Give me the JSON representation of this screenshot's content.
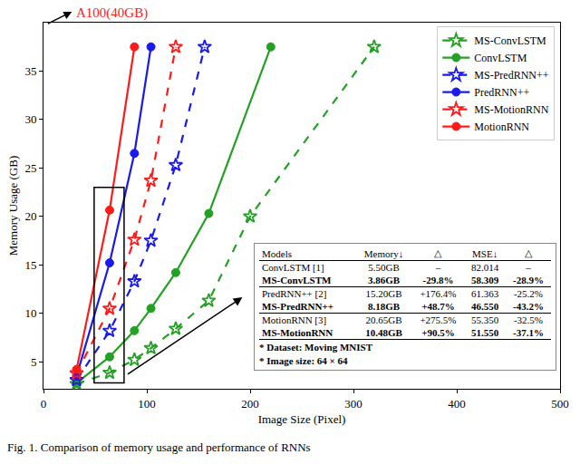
{
  "chart_data": {
    "type": "line",
    "x_label": "Image Size (Pixel)",
    "y_label": "Memory Usage (GB)",
    "xlim": [
      0,
      500
    ],
    "xticks": [
      0,
      100,
      200,
      300,
      400,
      500
    ],
    "ylim": [
      2.2,
      40
    ],
    "yticks": [
      5,
      10,
      15,
      20,
      25,
      30,
      35
    ],
    "grid": false,
    "legend": "upper right",
    "annotation": "A100(40GB)",
    "caption": "Fig. 1. Comparison of memory usage and performance of RNNs",
    "series": [
      {
        "name": "MS-ConvLSTM",
        "color": "#24a024",
        "marker": "star",
        "line_style": "dashed",
        "x": [
          32,
          64,
          88,
          104,
          128,
          160,
          200,
          320
        ],
        "values": [
          2.7,
          3.86,
          5.2,
          6.4,
          8.4,
          11.3,
          20.0,
          37.5
        ]
      },
      {
        "name": "ConvLSTM",
        "color": "#24a024",
        "marker": "circle",
        "line_style": "solid",
        "x": [
          32,
          64,
          88,
          104,
          128,
          160,
          220
        ],
        "values": [
          2.8,
          5.5,
          8.2,
          10.5,
          14.2,
          20.3,
          37.5
        ]
      },
      {
        "name": "MS-PredRNN++",
        "color": "#1a1aee",
        "marker": "star",
        "line_style": "dashed",
        "x": [
          32,
          64,
          88,
          104,
          128,
          156
        ],
        "values": [
          3.1,
          8.18,
          13.3,
          17.5,
          25.3,
          37.5
        ]
      },
      {
        "name": "PredRNN++",
        "color": "#1a1aee",
        "marker": "circle",
        "line_style": "solid",
        "x": [
          32,
          64,
          88,
          104
        ],
        "values": [
          3.5,
          15.2,
          26.5,
          37.5
        ]
      },
      {
        "name": "MS-MotionRNN",
        "color": "#ff1a1a",
        "marker": "star",
        "line_style": "dashed",
        "x": [
          32,
          64,
          88,
          104,
          128
        ],
        "values": [
          3.8,
          10.48,
          17.6,
          23.7,
          37.5
        ]
      },
      {
        "name": "MotionRNN",
        "color": "#ff1a1a",
        "marker": "circle",
        "line_style": "solid",
        "x": [
          32,
          64,
          88
        ],
        "values": [
          4.2,
          20.65,
          37.5
        ]
      }
    ],
    "table": {
      "header": [
        "Models",
        "Memory↓",
        "△",
        "MSE↓",
        "△"
      ],
      "rows": [
        [
          "ConvLSTM [1]",
          "5.50GB",
          "–",
          "82.014",
          "–"
        ],
        [
          "MS-ConvLSTM",
          "3.86GB",
          "-29.8%",
          "58.309",
          "-28.9%"
        ],
        [
          "PredRNN++ [2]",
          "15.20GB",
          "+176.4%",
          "61.363",
          "-25.2%"
        ],
        [
          "MS-PredRNN++",
          "8.18GB",
          "+48.7%",
          "46.550",
          "-43.2%"
        ],
        [
          "MotionRNN [3]",
          "20.65GB",
          "+275.5%",
          "55.350",
          "-32.5%"
        ],
        [
          "MS-MotionRNN",
          "10.48GB",
          "+90.5%",
          "51.550",
          "-37.1%"
        ]
      ],
      "notes": [
        "* Dataset: Moving MNIST",
        "* Image size: 64 × 64"
      ]
    }
  }
}
